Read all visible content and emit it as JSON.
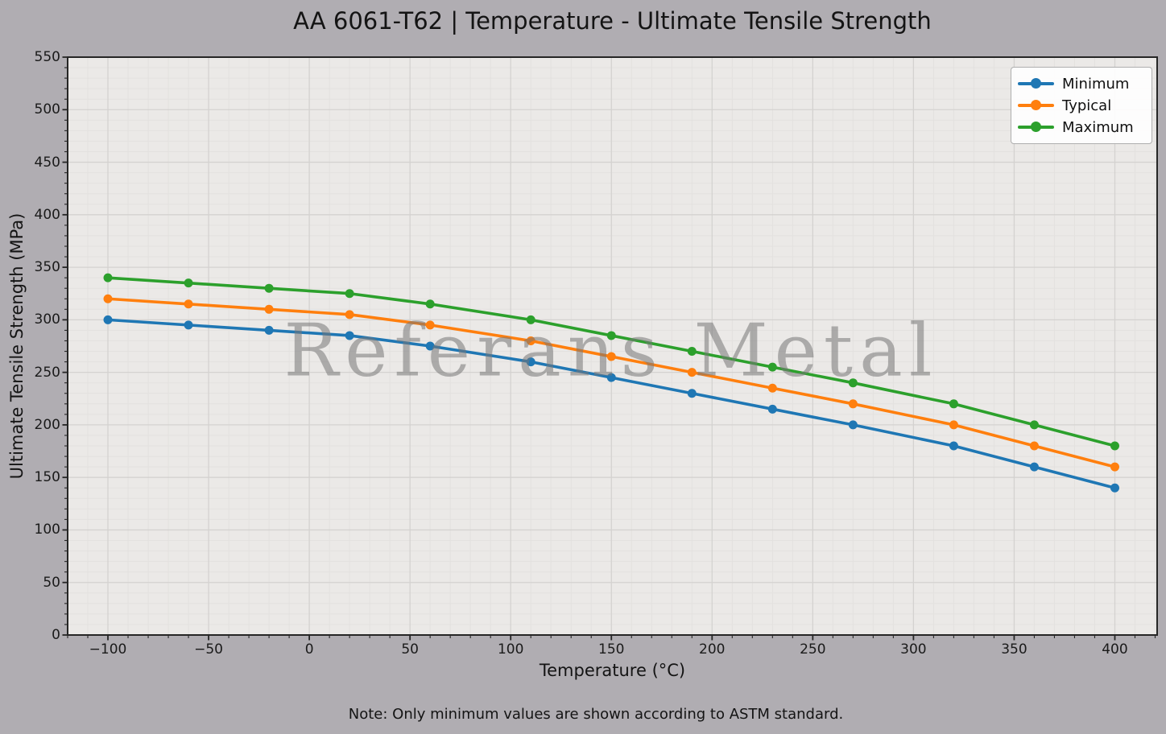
{
  "chart_data": {
    "type": "line",
    "title": "AA 6061-T62 | Temperature - Ultimate Tensile Strength",
    "xlabel": "Temperature (°C)",
    "ylabel": "Ultimate Tensile Strength (MPa)",
    "note": "Note: Only minimum values are shown according to ASTM standard.",
    "watermark": "Referans Metal",
    "x": [
      -100,
      -60,
      -20,
      20,
      60,
      110,
      150,
      190,
      230,
      270,
      320,
      360,
      400
    ],
    "series": [
      {
        "name": "Minimum",
        "color": "#1f77b4",
        "values": [
          300,
          295,
          290,
          285,
          275,
          260,
          245,
          230,
          215,
          200,
          180,
          160,
          140
        ]
      },
      {
        "name": "Typical",
        "color": "#ff7f0e",
        "values": [
          320,
          315,
          310,
          305,
          295,
          280,
          265,
          250,
          235,
          220,
          200,
          180,
          160
        ]
      },
      {
        "name": "Maximum",
        "color": "#2ca02c",
        "values": [
          340,
          335,
          330,
          325,
          315,
          300,
          285,
          270,
          255,
          240,
          220,
          200,
          180
        ]
      }
    ],
    "xlim": [
      -120,
      421
    ],
    "ylim": [
      0,
      550
    ],
    "x_ticks": [
      -100,
      -50,
      0,
      50,
      100,
      150,
      200,
      250,
      300,
      350,
      400
    ],
    "x_tick_labels": [
      "−100",
      "−50",
      "0",
      "50",
      "100",
      "150",
      "200",
      "250",
      "300",
      "350",
      "400"
    ],
    "y_ticks": [
      0,
      50,
      100,
      150,
      200,
      250,
      300,
      350,
      400,
      450,
      500,
      550
    ],
    "y_tick_labels": [
      "0",
      "50",
      "100",
      "150",
      "200",
      "250",
      "300",
      "350",
      "400",
      "450",
      "500",
      "550"
    ],
    "minor_tick_step": 10,
    "grid": "major+minor",
    "legend_position": "upper right",
    "legend_entries": [
      "Minimum",
      "Typical",
      "Maximum"
    ],
    "colors": {
      "figure_bg": "#b0adb2",
      "axes_bg": "#ebe9e7",
      "grid_major": "#d4d2d0",
      "grid_minor": "#e3e1df",
      "spine": "#262626",
      "text": "#141414",
      "watermark_gray": "#767676"
    }
  }
}
